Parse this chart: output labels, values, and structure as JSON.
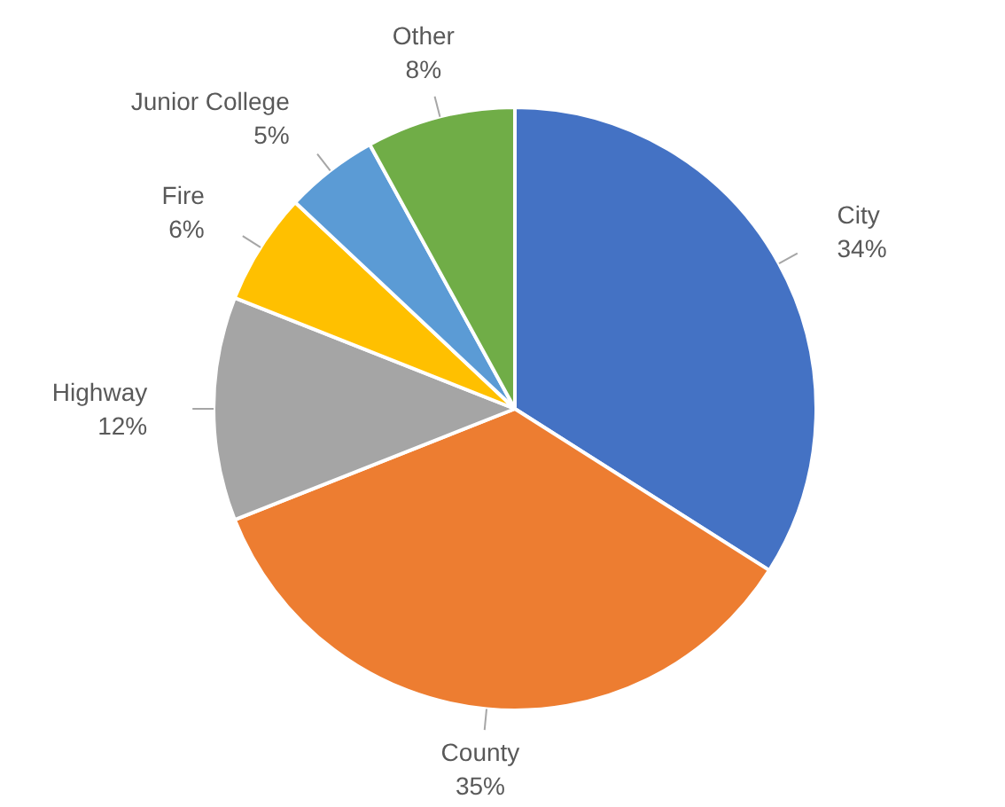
{
  "chart_data": {
    "type": "pie",
    "categories": [
      "City",
      "County",
      "Highway",
      "Fire",
      "Junior College",
      "Other"
    ],
    "values": [
      34,
      35,
      12,
      6,
      5,
      8
    ],
    "value_labels": [
      "34%",
      "35%",
      "12%",
      "6%",
      "5%",
      "8%"
    ],
    "colors": [
      "#4472c4",
      "#ed7d31",
      "#a5a5a5",
      "#ffc000",
      "#5b9bd5",
      "#70ad47"
    ]
  }
}
